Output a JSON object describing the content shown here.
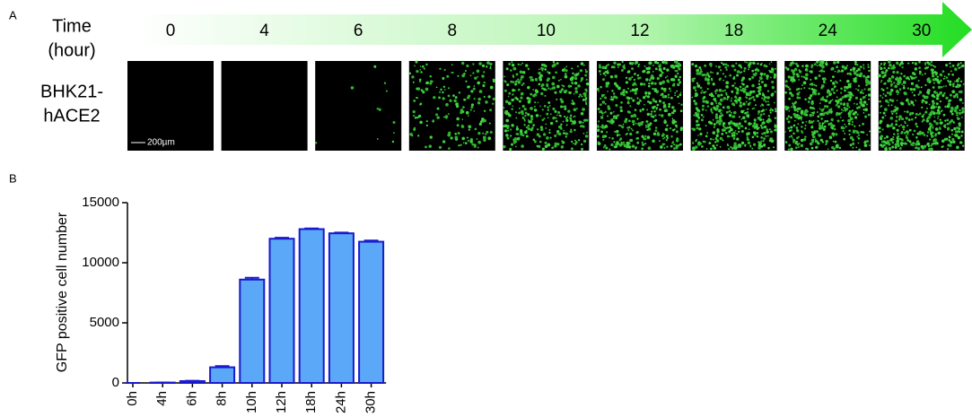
{
  "panel_a": {
    "label": "A",
    "time_label": [
      "Time",
      "(hour)"
    ],
    "time_points": [
      0,
      4,
      6,
      8,
      10,
      12,
      18,
      24,
      30
    ],
    "row_label": [
      "BHK21-",
      "hACE2"
    ],
    "scale_bar": "200µm"
  },
  "chart_data": {
    "type": "bar",
    "panel_label": "B",
    "ylabel": "GFP positive cell number",
    "categories": [
      "0h",
      "4h",
      "6h",
      "8h",
      "10h",
      "12h",
      "18h",
      "24h",
      "30h"
    ],
    "values": [
      0,
      30,
      150,
      1300,
      8600,
      12000,
      12800,
      12450,
      11750
    ],
    "errors": [
      0,
      10,
      30,
      100,
      150,
      80,
      50,
      60,
      100
    ],
    "color": "#5aa8f7",
    "edge_color": "#1a1acc",
    "ylim": [
      0,
      15000
    ],
    "yticks": [
      0,
      5000,
      10000,
      15000
    ]
  }
}
